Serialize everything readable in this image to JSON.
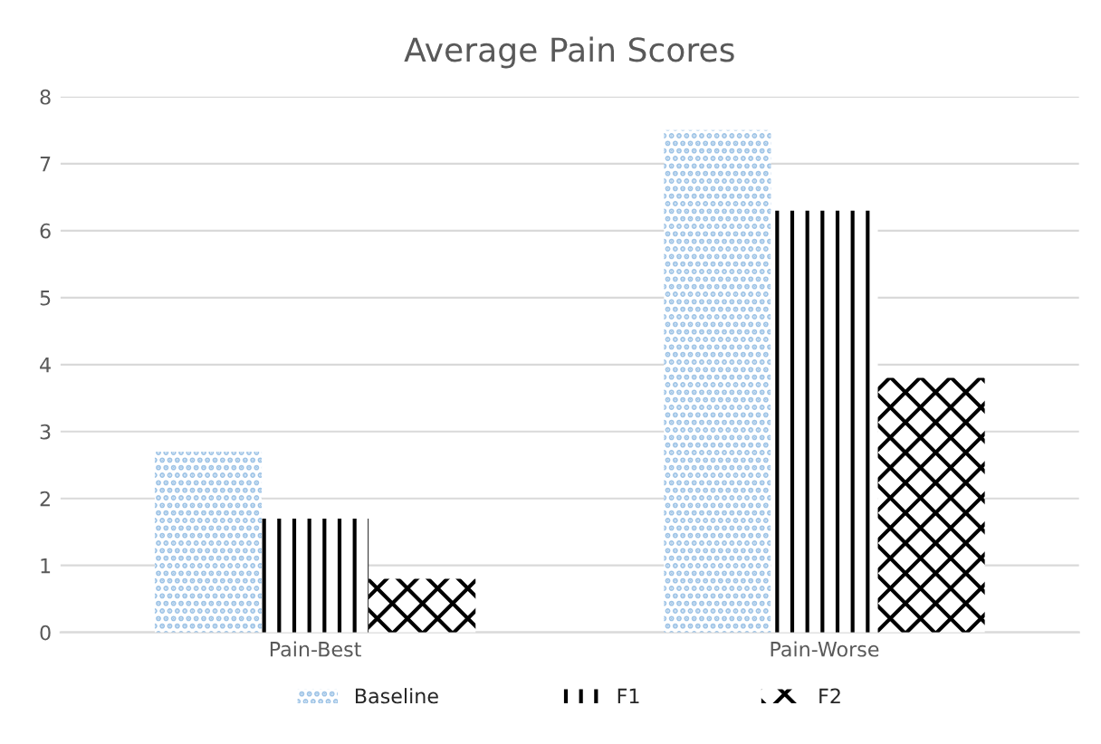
{
  "chart_data": {
    "type": "bar",
    "title": "Average Pain Scores",
    "categories": [
      "Pain-Best",
      "Pain-Worse"
    ],
    "series": [
      {
        "name": "Baseline",
        "color": "#9dc3e6",
        "values": [
          2.7,
          7.5
        ]
      },
      {
        "name": "F1",
        "color": "#000000",
        "values": [
          1.7,
          6.3
        ]
      },
      {
        "name": "F2",
        "color": "#000000",
        "values": [
          0.8,
          3.8
        ]
      }
    ],
    "ylim": [
      0,
      8
    ],
    "yticks": [
      0,
      1,
      2,
      3,
      4,
      5,
      6,
      7,
      8
    ],
    "grid": "y",
    "legend": "bottom"
  }
}
